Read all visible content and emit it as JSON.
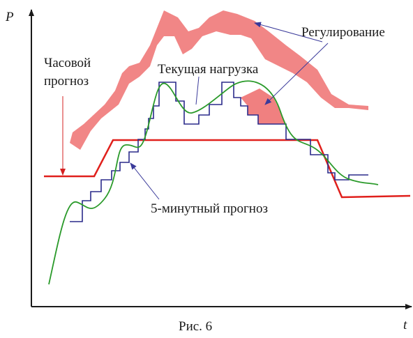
{
  "axes": {
    "y_label": "P",
    "x_label": "t"
  },
  "labels": {
    "hourly_forecast_line1": "Часовой",
    "hourly_forecast_line2": "прогноз",
    "current_load": "Текущая нагрузка",
    "regulation": "Регулирование",
    "five_min_forecast": "5-минутный прогноз"
  },
  "caption": "Рис. 6"
}
